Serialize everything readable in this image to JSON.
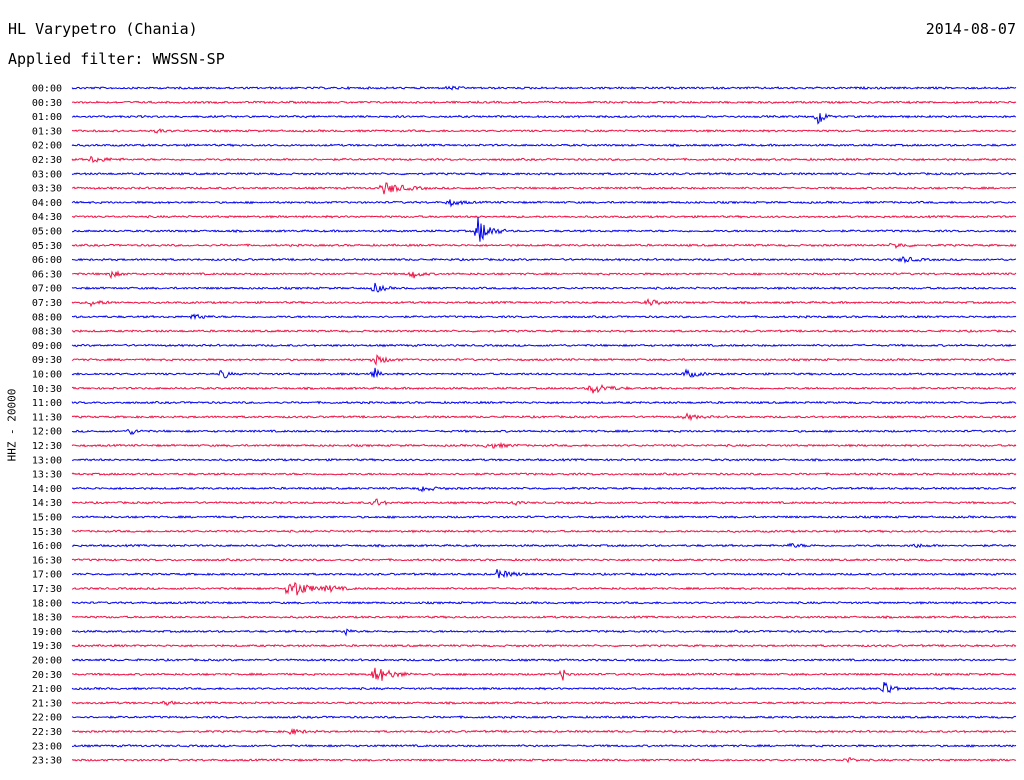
{
  "header": {
    "station": "HL Varypetro (Chania)",
    "date": "2014-08-07",
    "filter": "Applied filter: WWSSN-SP"
  },
  "chart_data": {
    "type": "helicorder",
    "channel_label": "HHZ - 20000",
    "colors": [
      "#0000ee",
      "#ee1144"
    ],
    "events": [
      {
        "row": 0,
        "x": 0.4,
        "amp": 2,
        "w": 0.02
      },
      {
        "row": 2,
        "x": 0.79,
        "amp": 10,
        "w": 0.015
      },
      {
        "row": 3,
        "x": 0.09,
        "amp": 2,
        "w": 0.02
      },
      {
        "row": 5,
        "x": 0.02,
        "amp": 3,
        "w": 0.04
      },
      {
        "row": 7,
        "x": 0.33,
        "amp": 6,
        "w": 0.05
      },
      {
        "row": 8,
        "x": 0.4,
        "amp": 3,
        "w": 0.03
      },
      {
        "row": 10,
        "x": 0.43,
        "amp": 14,
        "w": 0.03
      },
      {
        "row": 11,
        "x": 0.87,
        "amp": 3,
        "w": 0.03
      },
      {
        "row": 12,
        "x": 0.88,
        "amp": 3,
        "w": 0.03
      },
      {
        "row": 13,
        "x": 0.04,
        "amp": 4,
        "w": 0.02
      },
      {
        "row": 13,
        "x": 0.36,
        "amp": 5,
        "w": 0.02
      },
      {
        "row": 14,
        "x": 0.32,
        "amp": 6,
        "w": 0.02
      },
      {
        "row": 15,
        "x": 0.02,
        "amp": 3,
        "w": 0.03
      },
      {
        "row": 15,
        "x": 0.61,
        "amp": 3,
        "w": 0.03
      },
      {
        "row": 16,
        "x": 0.13,
        "amp": 4,
        "w": 0.02
      },
      {
        "row": 19,
        "x": 0.32,
        "amp": 5,
        "w": 0.03
      },
      {
        "row": 20,
        "x": 0.16,
        "amp": 8,
        "w": 0.01
      },
      {
        "row": 20,
        "x": 0.32,
        "amp": 8,
        "w": 0.01
      },
      {
        "row": 20,
        "x": 0.65,
        "amp": 4,
        "w": 0.03
      },
      {
        "row": 21,
        "x": 0.55,
        "amp": 6,
        "w": 0.04
      },
      {
        "row": 23,
        "x": 0.65,
        "amp": 3,
        "w": 0.03
      },
      {
        "row": 24,
        "x": 0.06,
        "amp": 4,
        "w": 0.02
      },
      {
        "row": 25,
        "x": 0.44,
        "amp": 3,
        "w": 0.04
      },
      {
        "row": 28,
        "x": 0.37,
        "amp": 3,
        "w": 0.03
      },
      {
        "row": 29,
        "x": 0.32,
        "amp": 5,
        "w": 0.02
      },
      {
        "row": 29,
        "x": 0.47,
        "amp": 3,
        "w": 0.01
      },
      {
        "row": 32,
        "x": 0.76,
        "amp": 2,
        "w": 0.03
      },
      {
        "row": 32,
        "x": 0.89,
        "amp": 2,
        "w": 0.03
      },
      {
        "row": 34,
        "x": 0.45,
        "amp": 4,
        "w": 0.04
      },
      {
        "row": 35,
        "x": 0.23,
        "amp": 12,
        "w": 0.04
      },
      {
        "row": 35,
        "x": 0.27,
        "amp": 4,
        "w": 0.03
      },
      {
        "row": 38,
        "x": 0.29,
        "amp": 4,
        "w": 0.01
      },
      {
        "row": 41,
        "x": 0.32,
        "amp": 10,
        "w": 0.04
      },
      {
        "row": 41,
        "x": 0.52,
        "amp": 7,
        "w": 0.01
      },
      {
        "row": 42,
        "x": 0.86,
        "amp": 10,
        "w": 0.02
      },
      {
        "row": 43,
        "x": 0.1,
        "amp": 4,
        "w": 0.01
      },
      {
        "row": 45,
        "x": 0.23,
        "amp": 3,
        "w": 0.03
      },
      {
        "row": 47,
        "x": 0.82,
        "amp": 3,
        "w": 0.02
      }
    ],
    "time_labels": [
      "00:00",
      "00:30",
      "01:00",
      "01:30",
      "02:00",
      "02:30",
      "03:00",
      "03:30",
      "04:00",
      "04:30",
      "05:00",
      "05:30",
      "06:00",
      "06:30",
      "07:00",
      "07:30",
      "08:00",
      "08:30",
      "09:00",
      "09:30",
      "10:00",
      "10:30",
      "11:00",
      "11:30",
      "12:00",
      "12:30",
      "13:00",
      "13:30",
      "14:00",
      "14:30",
      "15:00",
      "15:30",
      "16:00",
      "16:30",
      "17:00",
      "17:30",
      "18:00",
      "18:30",
      "19:00",
      "19:30",
      "20:00",
      "20:30",
      "21:00",
      "21:30",
      "22:00",
      "22:30",
      "23:00",
      "23:30"
    ]
  }
}
